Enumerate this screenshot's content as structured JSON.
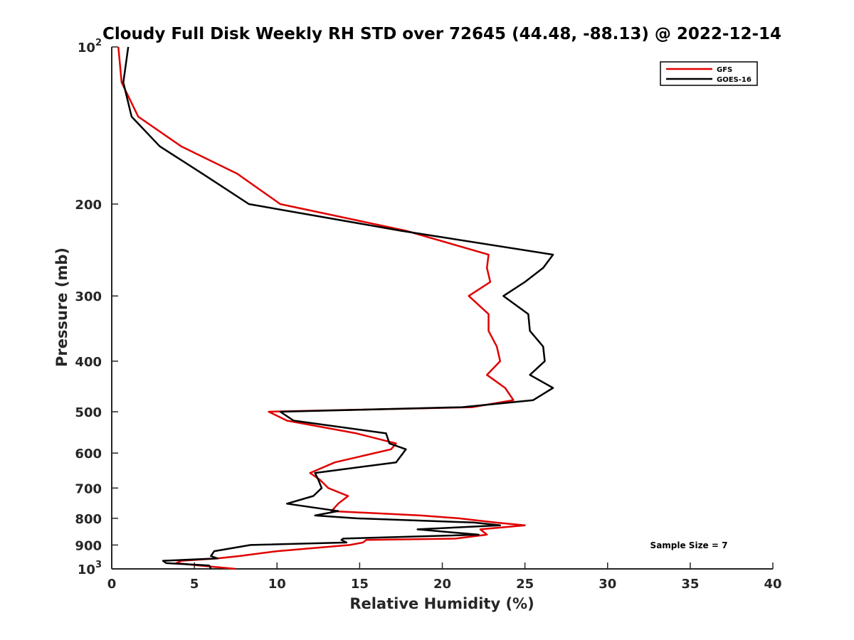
{
  "chart_data": {
    "type": "line",
    "title": "Cloudy Full Disk Weekly RH STD over 72645 (44.48, -88.13) @ 2022-12-14",
    "xlabel": "Relative Humidity (%)",
    "ylabel": "Pressure (mb)",
    "xlim": [
      0,
      40
    ],
    "ylim": [
      100,
      1000
    ],
    "yscale": "log",
    "y_reversed": true,
    "grid": false,
    "legend_position": "top-right",
    "x_ticks": [
      "0",
      "5",
      "10",
      "15",
      "20",
      "25",
      "30",
      "35",
      "40"
    ],
    "y_ticks": [
      {
        "value": 100,
        "base": "10",
        "exp": "2"
      },
      {
        "value": 200,
        "label": "200"
      },
      {
        "value": 300,
        "label": "300"
      },
      {
        "value": 400,
        "label": "400"
      },
      {
        "value": 500,
        "label": "500"
      },
      {
        "value": 600,
        "label": "600"
      },
      {
        "value": 700,
        "label": "700"
      },
      {
        "value": 800,
        "label": "800"
      },
      {
        "value": 900,
        "label": "900"
      },
      {
        "value": 1000,
        "base": "10",
        "exp": "3"
      }
    ],
    "annotation": "Sample Size = 7",
    "series": [
      {
        "name": "GFS",
        "color": "#e00000",
        "points": [
          [
            0.4,
            100
          ],
          [
            0.6,
            117
          ],
          [
            1.6,
            136
          ],
          [
            4.2,
            155
          ],
          [
            7.6,
            175
          ],
          [
            10.2,
            200
          ],
          [
            17.8,
            225
          ],
          [
            22.8,
            250
          ],
          [
            22.7,
            265
          ],
          [
            22.9,
            282
          ],
          [
            21.6,
            300
          ],
          [
            22.8,
            325
          ],
          [
            22.8,
            350
          ],
          [
            23.3,
            375
          ],
          [
            23.5,
            400
          ],
          [
            22.7,
            425
          ],
          [
            23.8,
            450
          ],
          [
            24.3,
            475
          ],
          [
            21.8,
            490
          ],
          [
            9.5,
            500
          ],
          [
            10.6,
            520
          ],
          [
            14.8,
            550
          ],
          [
            17.2,
            575
          ],
          [
            16.9,
            590
          ],
          [
            13.5,
            625
          ],
          [
            12.0,
            655
          ],
          [
            12.6,
            675
          ],
          [
            13.1,
            700
          ],
          [
            14.3,
            725
          ],
          [
            13.7,
            750
          ],
          [
            13.3,
            775
          ],
          [
            18.7,
            790
          ],
          [
            21.0,
            800
          ],
          [
            23.2,
            815
          ],
          [
            25.0,
            825
          ],
          [
            22.3,
            840
          ],
          [
            22.7,
            860
          ],
          [
            20.8,
            875
          ],
          [
            15.4,
            880
          ],
          [
            15.2,
            890
          ],
          [
            14.4,
            900
          ],
          [
            10.0,
            925
          ],
          [
            7.7,
            945
          ],
          [
            6.4,
            955
          ],
          [
            4.2,
            965
          ],
          [
            3.9,
            975
          ],
          [
            5.3,
            985
          ],
          [
            7.5,
            1000
          ]
        ]
      },
      {
        "name": "GOES-16",
        "color": "#000000",
        "points": [
          [
            1.0,
            100
          ],
          [
            0.7,
            117
          ],
          [
            1.2,
            136
          ],
          [
            2.9,
            155
          ],
          [
            5.5,
            175
          ],
          [
            8.3,
            200
          ],
          [
            17.5,
            225
          ],
          [
            26.7,
            250
          ],
          [
            26.1,
            265
          ],
          [
            25.0,
            282
          ],
          [
            23.7,
            300
          ],
          [
            25.2,
            325
          ],
          [
            25.3,
            350
          ],
          [
            26.1,
            375
          ],
          [
            26.2,
            400
          ],
          [
            25.3,
            425
          ],
          [
            26.7,
            450
          ],
          [
            25.5,
            475
          ],
          [
            21.2,
            490
          ],
          [
            10.2,
            500
          ],
          [
            11.0,
            520
          ],
          [
            16.6,
            550
          ],
          [
            16.8,
            575
          ],
          [
            17.8,
            590
          ],
          [
            17.2,
            625
          ],
          [
            12.3,
            655
          ],
          [
            12.5,
            675
          ],
          [
            12.7,
            700
          ],
          [
            12.2,
            725
          ],
          [
            10.6,
            750
          ],
          [
            13.7,
            775
          ],
          [
            12.3,
            790
          ],
          [
            14.8,
            800
          ],
          [
            21.9,
            815
          ],
          [
            23.5,
            825
          ],
          [
            18.5,
            840
          ],
          [
            22.2,
            860
          ],
          [
            14.0,
            875
          ],
          [
            13.9,
            880
          ],
          [
            14.2,
            890
          ],
          [
            8.4,
            900
          ],
          [
            6.2,
            925
          ],
          [
            6.0,
            945
          ],
          [
            6.4,
            955
          ],
          [
            3.1,
            965
          ],
          [
            3.3,
            975
          ],
          [
            5.9,
            985
          ],
          [
            6.0,
            1000
          ]
        ]
      }
    ]
  }
}
